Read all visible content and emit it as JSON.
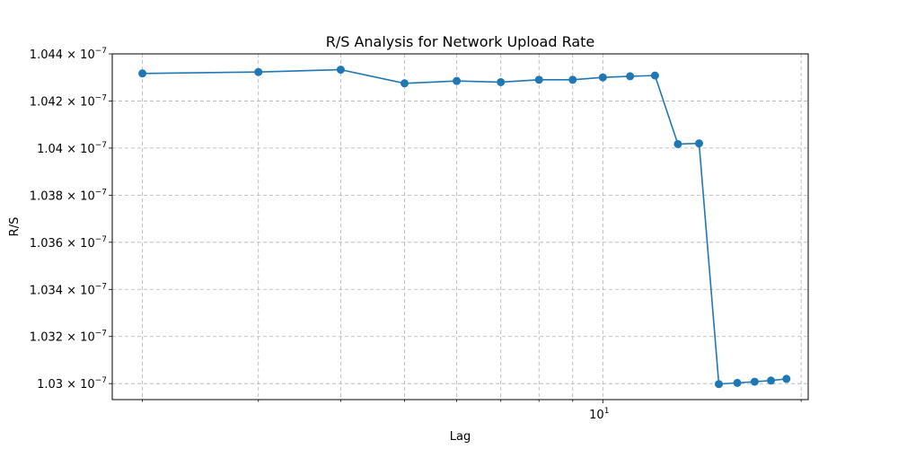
{
  "chart_data": {
    "type": "line",
    "title": "R/S Analysis for Network Upload Rate",
    "xlabel": "Lag",
    "ylabel": "R/S",
    "x_scale": "log",
    "grid": true,
    "xlim": [
      1.8,
      20.5
    ],
    "ylim": [
      1.02932e-07,
      1.044e-07
    ],
    "x_ticks": [
      {
        "value": 10,
        "label": "10",
        "sup": "1"
      }
    ],
    "x_minor_ticks": [
      2,
      3,
      4,
      5,
      6,
      7,
      8,
      9,
      20
    ],
    "y_ticks": [
      {
        "value": 1.03e-07,
        "label": "1.03",
        "sup": "−7"
      },
      {
        "value": 1.032e-07,
        "label": "1.032",
        "sup": "−7"
      },
      {
        "value": 1.034e-07,
        "label": "1.034",
        "sup": "−7"
      },
      {
        "value": 1.036e-07,
        "label": "1.036",
        "sup": "−7"
      },
      {
        "value": 1.038e-07,
        "label": "1.038",
        "sup": "−7"
      },
      {
        "value": 1.04e-07,
        "label": "1.04",
        "sup": "−7"
      },
      {
        "value": 1.042e-07,
        "label": "1.042",
        "sup": "−7"
      },
      {
        "value": 1.044e-07,
        "label": "1.044",
        "sup": "−7"
      }
    ],
    "series": [
      {
        "color": "#1f77b4",
        "x": [
          2,
          3,
          4,
          5,
          6,
          7,
          8,
          9,
          10,
          11,
          12,
          13,
          14,
          15,
          16,
          17,
          18,
          19
        ],
        "y": [
          1.04317e-07,
          1.04323e-07,
          1.04333e-07,
          1.04275e-07,
          1.04285e-07,
          1.0428e-07,
          1.0429e-07,
          1.0429e-07,
          1.043e-07,
          1.04305e-07,
          1.04308e-07,
          1.04017e-07,
          1.0402e-07,
          1.02998e-07,
          1.03003e-07,
          1.03008e-07,
          1.03013e-07,
          1.0302e-07
        ]
      }
    ]
  }
}
